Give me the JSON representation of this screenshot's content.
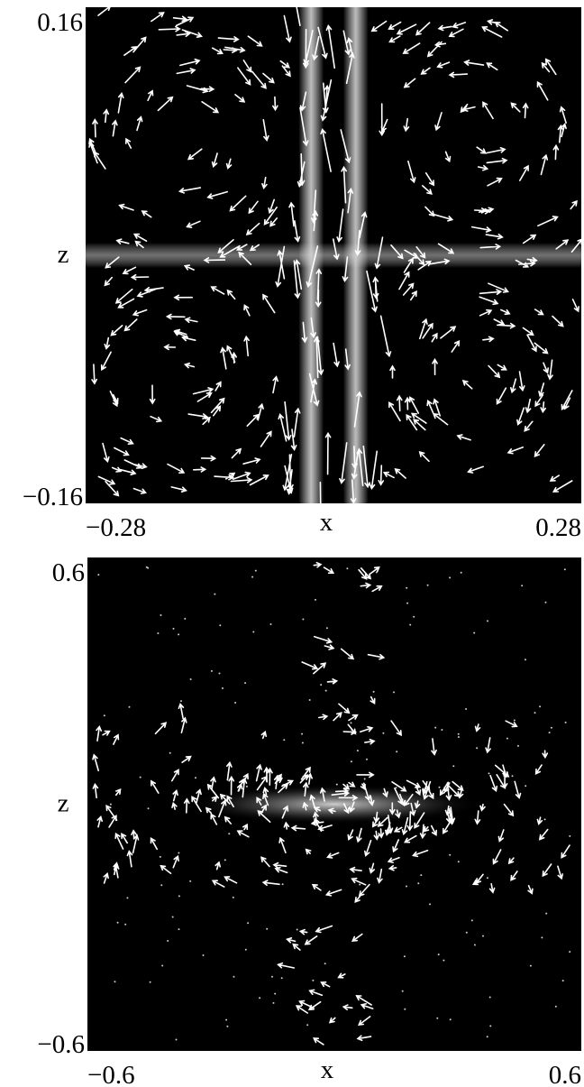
{
  "chart_data": [
    {
      "type": "quiver",
      "xlabel": "x",
      "ylabel": "z",
      "xlim": [
        -0.28,
        0.28
      ],
      "ylim": [
        -0.16,
        0.16
      ],
      "xticks": [
        {
          "value": -0.28,
          "label": "−0.28"
        },
        0.28
      ],
      "yticks": [
        {
          "value": -0.16,
          "label": "−0.16"
        },
        0.16
      ]
    },
    {
      "type": "quiver",
      "xlabel": "x",
      "ylabel": "z",
      "xlim": [
        -0.6,
        0.6
      ],
      "ylim": [
        -0.6,
        0.6
      ],
      "xticks": [
        {
          "value": -0.6,
          "label": "−0.6"
        },
        0.6
      ],
      "yticks": [
        {
          "value": -0.6,
          "label": "−0.6"
        },
        0.6
      ]
    }
  ]
}
